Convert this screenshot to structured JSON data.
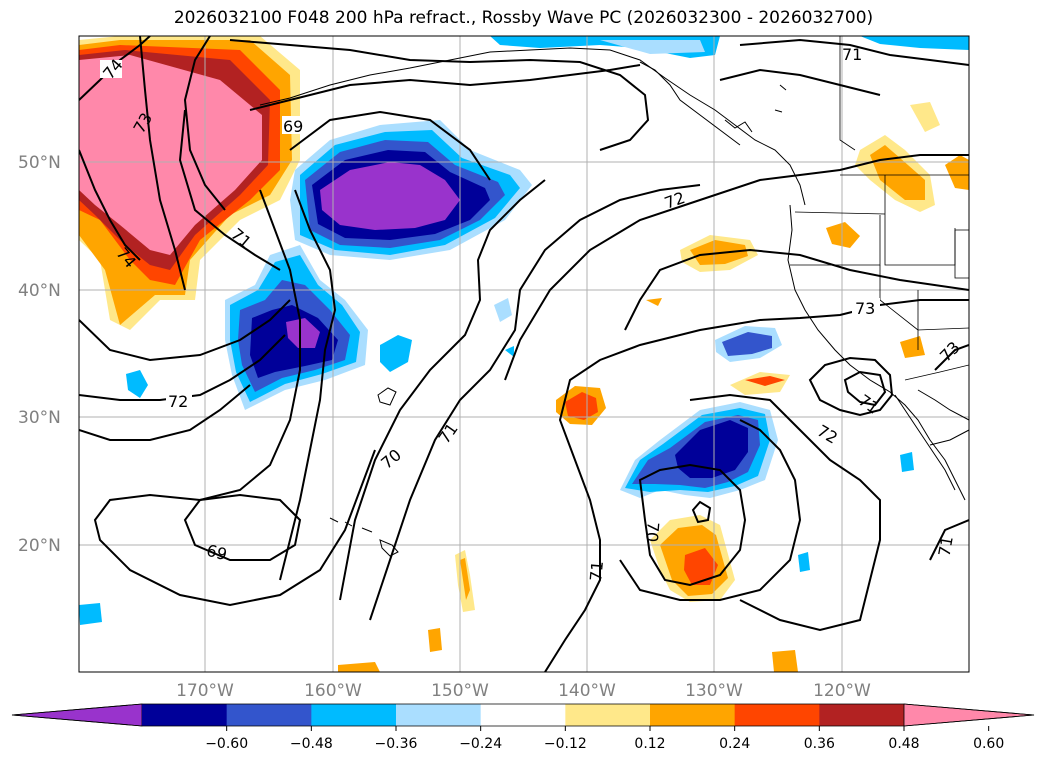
{
  "title": "2026032100 F048 200 hPa refract., Rossby Wave PC (2026032300 - 2026032700)",
  "map": {
    "lat_labels": [
      "50°N",
      "40°N",
      "30°N",
      "20°N"
    ],
    "lon_labels": [
      "170°W",
      "160°W",
      "150°W",
      "140°W",
      "130°W",
      "120°W"
    ],
    "contour_labels": [
      "74",
      "73",
      "69",
      "71",
      "74",
      "72",
      "70",
      "71",
      "69",
      "72",
      "73",
      "71",
      "72",
      "73",
      "71",
      "70",
      "71",
      "71"
    ]
  },
  "colorbar": {
    "ticks": [
      "−0.60",
      "−0.48",
      "−0.36",
      "−0.24",
      "−0.12",
      "0.12",
      "0.24",
      "0.36",
      "0.48",
      "0.60"
    ],
    "colors": [
      "#9933cc",
      "#000099",
      "#3355cc",
      "#00bbff",
      "#aadeff",
      "#ffffff",
      "#ffe88a",
      "#ffa500",
      "#ff4500",
      "#b22222",
      "#ff88aa"
    ]
  }
}
